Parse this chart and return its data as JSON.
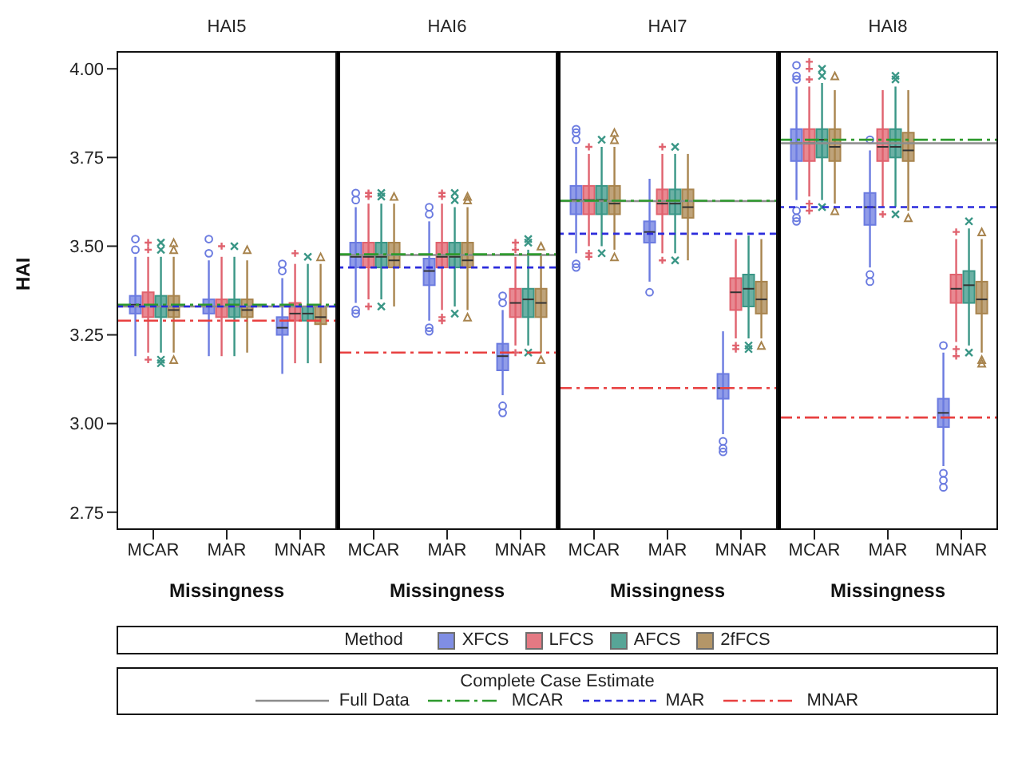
{
  "chart_data": [
    {
      "type": "box",
      "title": "HAI5",
      "xlabel": "Missingness",
      "ylabel": "HAI",
      "categories": [
        "MCAR",
        "MAR",
        "MNAR"
      ],
      "ylim": [
        2.7,
        4.05
      ],
      "yticks": [
        {
          "value": 2.75,
          "label": "2.75"
        },
        {
          "value": 3,
          "label": "3.00"
        },
        {
          "value": 3.25,
          "label": "3.25"
        },
        {
          "value": 3.5,
          "label": "3.50"
        },
        {
          "value": 3.75,
          "label": "3.75"
        },
        {
          "value": 4,
          "label": "4.00"
        }
      ],
      "legend": "bottom",
      "legend_title": "Method",
      "annotations": [
        "Complete Case Estimate"
      ],
      "series": [
        {
          "name": "XFCS",
          "color": "#6b7be0",
          "marker": "circle",
          "boxes": [
            {
              "low": 3.19,
              "q1": 3.31,
              "median": 3.335,
              "q3": 3.36,
              "high": 3.47,
              "outliers": [
                3.49,
                3.52
              ]
            },
            {
              "low": 3.19,
              "q1": 3.31,
              "median": 3.33,
              "q3": 3.35,
              "high": 3.46,
              "outliers": [
                3.48,
                3.52
              ]
            },
            {
              "low": 3.14,
              "q1": 3.25,
              "median": 3.27,
              "q3": 3.3,
              "high": 3.41,
              "outliers": [
                3.43,
                3.45
              ]
            }
          ]
        },
        {
          "name": "LFCS",
          "color": "#e0626e",
          "marker": "cross",
          "boxes": [
            {
              "low": 3.2,
              "q1": 3.3,
              "median": 3.33,
              "q3": 3.37,
              "high": 3.47,
              "outliers": [
                3.18,
                3.49,
                3.51
              ]
            },
            {
              "low": 3.19,
              "q1": 3.3,
              "median": 3.33,
              "q3": 3.35,
              "high": 3.47,
              "outliers": [
                3.5
              ]
            },
            {
              "low": 3.17,
              "q1": 3.29,
              "median": 3.31,
              "q3": 3.34,
              "high": 3.45,
              "outliers": [
                3.48
              ]
            }
          ]
        },
        {
          "name": "AFCS",
          "color": "#3a9686",
          "marker": "x",
          "boxes": [
            {
              "low": 3.2,
              "q1": 3.3,
              "median": 3.33,
              "q3": 3.36,
              "high": 3.47,
              "outliers": [
                3.17,
                3.18,
                3.49,
                3.51
              ]
            },
            {
              "low": 3.19,
              "q1": 3.3,
              "median": 3.33,
              "q3": 3.35,
              "high": 3.47,
              "outliers": [
                3.5
              ]
            },
            {
              "low": 3.17,
              "q1": 3.29,
              "median": 3.31,
              "q3": 3.33,
              "high": 3.45,
              "outliers": [
                3.47
              ]
            }
          ]
        },
        {
          "name": "2fFCS",
          "color": "#a8844e",
          "marker": "triangle",
          "boxes": [
            {
              "low": 3.2,
              "q1": 3.3,
              "median": 3.32,
              "q3": 3.36,
              "high": 3.47,
              "outliers": [
                3.18,
                3.49,
                3.51
              ]
            },
            {
              "low": 3.2,
              "q1": 3.3,
              "median": 3.32,
              "q3": 3.35,
              "high": 3.46,
              "outliers": [
                3.49
              ]
            },
            {
              "low": 3.17,
              "q1": 3.28,
              "median": 3.3,
              "q3": 3.33,
              "high": 3.45,
              "outliers": [
                3.47
              ]
            }
          ]
        }
      ],
      "ref_lines": [
        {
          "axis": "y",
          "value": 3.33,
          "label": "Full Data",
          "color": "#8c8c8c",
          "line_style": "solid"
        },
        {
          "axis": "y",
          "value": 3.335,
          "label": "MCAR",
          "color": "#2e9a2e",
          "line_style": "dashdot"
        },
        {
          "axis": "y",
          "value": 3.33,
          "label": "MAR",
          "color": "#2b2bdc",
          "line_style": "dashed"
        },
        {
          "axis": "y",
          "value": 3.29,
          "label": "MNAR",
          "color": "#e84040",
          "line_style": "dashdot"
        }
      ]
    },
    {
      "type": "box",
      "title": "HAI6",
      "xlabel": "Missingness",
      "categories": [
        "MCAR",
        "MAR",
        "MNAR"
      ],
      "ylim": [
        2.7,
        4.05
      ],
      "tick_labels": "x",
      "series": [
        {
          "color": "#6b7be0",
          "marker": "circle",
          "boxes": [
            {
              "low": 3.34,
              "q1": 3.44,
              "median": 3.47,
              "q3": 3.51,
              "high": 3.61,
              "outliers": [
                3.31,
                3.32,
                3.63,
                3.65
              ]
            },
            {
              "low": 3.29,
              "q1": 3.39,
              "median": 3.43,
              "q3": 3.465,
              "high": 3.57,
              "outliers": [
                3.26,
                3.27,
                3.59,
                3.61
              ]
            },
            {
              "low": 3.08,
              "q1": 3.15,
              "median": 3.19,
              "q3": 3.225,
              "high": 3.32,
              "outliers": [
                3.03,
                3.05,
                3.34,
                3.36
              ]
            }
          ]
        },
        {
          "color": "#e0626e",
          "marker": "cross",
          "boxes": [
            {
              "low": 3.35,
              "q1": 3.44,
              "median": 3.47,
              "q3": 3.51,
              "high": 3.62,
              "outliers": [
                3.33,
                3.64,
                3.65
              ]
            },
            {
              "low": 3.32,
              "q1": 3.44,
              "median": 3.47,
              "q3": 3.51,
              "high": 3.62,
              "outliers": [
                3.29,
                3.3,
                3.64,
                3.65
              ]
            },
            {
              "low": 3.22,
              "q1": 3.3,
              "median": 3.34,
              "q3": 3.38,
              "high": 3.47,
              "outliers": [
                3.2,
                3.49,
                3.51
              ]
            }
          ]
        },
        {
          "color": "#3a9686",
          "marker": "x",
          "boxes": [
            {
              "low": 3.35,
              "q1": 3.44,
              "median": 3.47,
              "q3": 3.51,
              "high": 3.62,
              "outliers": [
                3.33,
                3.64,
                3.65
              ]
            },
            {
              "low": 3.33,
              "q1": 3.44,
              "median": 3.47,
              "q3": 3.51,
              "high": 3.61,
              "outliers": [
                3.31,
                3.63,
                3.65
              ]
            },
            {
              "low": 3.22,
              "q1": 3.3,
              "median": 3.35,
              "q3": 3.38,
              "high": 3.49,
              "outliers": [
                3.2,
                3.51,
                3.52
              ]
            }
          ]
        },
        {
          "color": "#a8844e",
          "marker": "triangle",
          "boxes": [
            {
              "low": 3.33,
              "q1": 3.44,
              "median": 3.46,
              "q3": 3.51,
              "high": 3.62,
              "outliers": [
                3.64
              ]
            },
            {
              "low": 3.32,
              "q1": 3.44,
              "median": 3.46,
              "q3": 3.51,
              "high": 3.61,
              "outliers": [
                3.3,
                3.63,
                3.64
              ]
            },
            {
              "low": 3.2,
              "q1": 3.3,
              "median": 3.34,
              "q3": 3.38,
              "high": 3.48,
              "outliers": [
                3.18,
                3.5
              ]
            }
          ]
        }
      ],
      "ref_lines": [
        {
          "axis": "y",
          "value": 3.475,
          "color": "#8c8c8c",
          "line_style": "solid"
        },
        {
          "axis": "y",
          "value": 3.477,
          "color": "#2e9a2e",
          "line_style": "dashdot"
        },
        {
          "axis": "y",
          "value": 3.44,
          "color": "#2b2bdc",
          "line_style": "dashed"
        },
        {
          "axis": "y",
          "value": 3.2,
          "color": "#e84040",
          "line_style": "dashdot"
        }
      ]
    },
    {
      "type": "box",
      "title": "HAI7",
      "xlabel": "Missingness",
      "categories": [
        "MCAR",
        "MAR",
        "MNAR"
      ],
      "ylim": [
        2.7,
        4.05
      ],
      "tick_labels": "x",
      "series": [
        {
          "color": "#6b7be0",
          "marker": "circle",
          "boxes": [
            {
              "low": 3.48,
              "q1": 3.59,
              "median": 3.63,
              "q3": 3.67,
              "high": 3.78,
              "outliers": [
                3.44,
                3.45,
                3.8,
                3.82,
                3.83
              ]
            },
            {
              "low": 3.4,
              "q1": 3.51,
              "median": 3.54,
              "q3": 3.57,
              "high": 3.69,
              "outliers": [
                3.37
              ]
            },
            {
              "low": 2.97,
              "q1": 3.07,
              "median": 3.1,
              "q3": 3.14,
              "high": 3.26,
              "outliers": [
                2.92,
                2.93,
                2.95
              ]
            }
          ]
        },
        {
          "color": "#e0626e",
          "marker": "cross",
          "boxes": [
            {
              "low": 3.5,
              "q1": 3.59,
              "median": 3.63,
              "q3": 3.67,
              "high": 3.76,
              "outliers": [
                3.47,
                3.48,
                3.78
              ]
            },
            {
              "low": 3.48,
              "q1": 3.59,
              "median": 3.62,
              "q3": 3.66,
              "high": 3.76,
              "outliers": [
                3.46,
                3.78
              ]
            },
            {
              "low": 3.24,
              "q1": 3.32,
              "median": 3.37,
              "q3": 3.41,
              "high": 3.52,
              "outliers": [
                3.21,
                3.22
              ]
            }
          ]
        },
        {
          "color": "#3a9686",
          "marker": "x",
          "boxes": [
            {
              "low": 3.5,
              "q1": 3.59,
              "median": 3.63,
              "q3": 3.67,
              "high": 3.78,
              "outliers": [
                3.48,
                3.8
              ]
            },
            {
              "low": 3.48,
              "q1": 3.59,
              "median": 3.62,
              "q3": 3.66,
              "high": 3.76,
              "outliers": [
                3.46,
                3.78
              ]
            },
            {
              "low": 3.24,
              "q1": 3.33,
              "median": 3.38,
              "q3": 3.42,
              "high": 3.53,
              "outliers": [
                3.21,
                3.22
              ]
            }
          ]
        },
        {
          "color": "#a8844e",
          "marker": "triangle",
          "boxes": [
            {
              "low": 3.49,
              "q1": 3.59,
              "median": 3.62,
              "q3": 3.67,
              "high": 3.78,
              "outliers": [
                3.47,
                3.8,
                3.82
              ]
            },
            {
              "low": 3.46,
              "q1": 3.58,
              "median": 3.61,
              "q3": 3.66,
              "high": 3.76
            },
            {
              "low": 3.24,
              "q1": 3.31,
              "median": 3.35,
              "q3": 3.4,
              "high": 3.52,
              "outliers": [
                3.22
              ]
            }
          ]
        }
      ],
      "ref_lines": [
        {
          "axis": "y",
          "value": 3.627,
          "color": "#8c8c8c",
          "line_style": "solid"
        },
        {
          "axis": "y",
          "value": 3.628,
          "color": "#2e9a2e",
          "line_style": "dashdot"
        },
        {
          "axis": "y",
          "value": 3.535,
          "color": "#2b2bdc",
          "line_style": "dashed"
        },
        {
          "axis": "y",
          "value": 3.1,
          "color": "#e84040",
          "line_style": "dashdot"
        }
      ]
    },
    {
      "type": "box",
      "title": "HAI8",
      "xlabel": "Missingness",
      "categories": [
        "MCAR",
        "MAR",
        "MNAR"
      ],
      "ylim": [
        2.7,
        4.05
      ],
      "tick_labels": "x",
      "series": [
        {
          "color": "#6b7be0",
          "marker": "circle",
          "boxes": [
            {
              "low": 3.63,
              "q1": 3.74,
              "median": 3.79,
              "q3": 3.83,
              "high": 3.95,
              "outliers": [
                3.57,
                3.58,
                3.6,
                3.97,
                3.98,
                4.01
              ]
            },
            {
              "low": 3.44,
              "q1": 3.56,
              "median": 3.61,
              "q3": 3.65,
              "high": 3.77,
              "outliers": [
                3.4,
                3.42,
                3.8
              ]
            },
            {
              "low": 2.88,
              "q1": 2.99,
              "median": 3.03,
              "q3": 3.07,
              "high": 3.2,
              "outliers": [
                2.82,
                2.84,
                2.86,
                3.22
              ]
            }
          ]
        },
        {
          "color": "#e0626e",
          "marker": "cross",
          "boxes": [
            {
              "low": 3.64,
              "q1": 3.74,
              "median": 3.79,
              "q3": 3.83,
              "high": 3.95,
              "outliers": [
                3.6,
                3.62,
                3.97,
                4.0,
                4.02
              ]
            },
            {
              "low": 3.61,
              "q1": 3.74,
              "median": 3.78,
              "q3": 3.83,
              "high": 3.94,
              "outliers": [
                3.59
              ]
            },
            {
              "low": 3.23,
              "q1": 3.34,
              "median": 3.38,
              "q3": 3.42,
              "high": 3.52,
              "outliers": [
                3.19,
                3.21,
                3.54
              ]
            }
          ]
        },
        {
          "color": "#3a9686",
          "marker": "x",
          "boxes": [
            {
              "low": 3.63,
              "q1": 3.75,
              "median": 3.8,
              "q3": 3.83,
              "high": 3.96,
              "outliers": [
                3.61,
                3.98,
                4.0
              ]
            },
            {
              "low": 3.61,
              "q1": 3.75,
              "median": 3.78,
              "q3": 3.83,
              "high": 3.95,
              "outliers": [
                3.59,
                3.97,
                3.98
              ]
            },
            {
              "low": 3.22,
              "q1": 3.34,
              "median": 3.39,
              "q3": 3.43,
              "high": 3.55,
              "outliers": [
                3.2,
                3.57
              ]
            }
          ]
        },
        {
          "color": "#a8844e",
          "marker": "triangle",
          "boxes": [
            {
              "low": 3.62,
              "q1": 3.74,
              "median": 3.78,
              "q3": 3.83,
              "high": 3.94,
              "outliers": [
                3.6,
                3.98
              ]
            },
            {
              "low": 3.6,
              "q1": 3.74,
              "median": 3.77,
              "q3": 3.82,
              "high": 3.94,
              "outliers": [
                3.58
              ]
            },
            {
              "low": 3.2,
              "q1": 3.31,
              "median": 3.35,
              "q3": 3.4,
              "high": 3.52,
              "outliers": [
                3.17,
                3.18,
                3.54
              ]
            }
          ]
        }
      ],
      "ref_lines": [
        {
          "axis": "y",
          "value": 3.79,
          "color": "#8c8c8c",
          "line_style": "solid"
        },
        {
          "axis": "y",
          "value": 3.8,
          "color": "#2e9a2e",
          "line_style": "dashdot"
        },
        {
          "axis": "y",
          "value": 3.61,
          "color": "#2b2bdc",
          "line_style": "dashed"
        },
        {
          "axis": "y",
          "value": 3.017,
          "color": "#e84040",
          "line_style": "dashdot"
        }
      ]
    }
  ]
}
